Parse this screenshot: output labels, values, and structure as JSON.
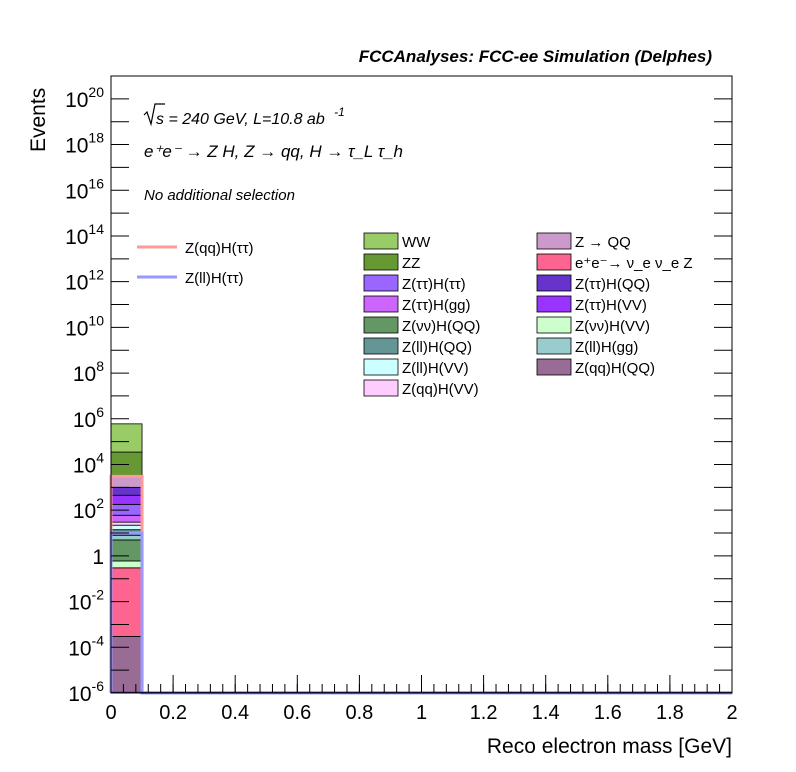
{
  "header": {
    "title": "FCCAnalyses: FCC-ee Simulation (Delphes)",
    "energy_label": "s = 240 GeV, L=10.8 ab",
    "lumi_exponent": "-1",
    "process_label": "e⁺e⁻ → Z H, Z → qq, H → τ_L τ_h",
    "selection_label": "No additional selection"
  },
  "chart_data": {
    "type": "bar",
    "stacked": true,
    "ylog": true,
    "xlabel": "Reco electron mass [GeV]",
    "ylabel": "Events",
    "xlim": [
      0,
      2
    ],
    "ylim": [
      1e-06,
      1e+21
    ],
    "x_ticks": [
      "0",
      "0.2",
      "0.4",
      "0.6",
      "0.8",
      "1",
      "1.2",
      "1.4",
      "1.6",
      "1.8",
      "2"
    ],
    "y_ticks": [
      {
        "value": 1e-06,
        "base": "10",
        "exp": "-6"
      },
      {
        "value": 0.0001,
        "base": "10",
        "exp": "-4"
      },
      {
        "value": 0.01,
        "base": "10",
        "exp": "-2"
      },
      {
        "value": 1,
        "base": "1",
        "exp": ""
      },
      {
        "value": 100.0,
        "base": "10",
        "exp": "2"
      },
      {
        "value": 10000.0,
        "base": "10",
        "exp": "4"
      },
      {
        "value": 1000000.0,
        "base": "10",
        "exp": "6"
      },
      {
        "value": 100000000.0,
        "base": "10",
        "exp": "8"
      },
      {
        "value": 10000000000.0,
        "base": "10",
        "exp": "10"
      },
      {
        "value": 1000000000000.0,
        "base": "10",
        "exp": "12"
      },
      {
        "value": 100000000000000.0,
        "base": "10",
        "exp": "14"
      },
      {
        "value": 1e+16,
        "base": "10",
        "exp": "16"
      },
      {
        "value": 1e+18,
        "base": "10",
        "exp": "18"
      },
      {
        "value": 1e+20,
        "base": "10",
        "exp": "20"
      }
    ],
    "bin": [
      0,
      0.1
    ],
    "stack_order_bottom_to_top": [
      {
        "name": "Z(qq)H(QQ)",
        "color": "#986c94",
        "cumulative_top": 0.0003
      },
      {
        "name": "e⁺e⁻→ ν_e ν_e Z",
        "color": "#fe6490",
        "cumulative_top": 0.3
      },
      {
        "name": "Z(νν)H(VV)",
        "color": "#ccffcc",
        "cumulative_top": 0.6
      },
      {
        "name": "Z(νν)H(QQ)",
        "color": "#639763",
        "cumulative_top": 5
      },
      {
        "name": "Z(ll)H(gg)",
        "color": "#99cccc",
        "cumulative_top": 8
      },
      {
        "name": "Z(ll)H(QQ)",
        "color": "#649696",
        "cumulative_top": 14
      },
      {
        "name": "Z(ll)H(VV)",
        "color": "#ccffff",
        "cumulative_top": 22
      },
      {
        "name": "Z(qq)H(VV)",
        "color": "#ffccff",
        "cumulative_top": 30
      },
      {
        "name": "Z(ττ)H(gg)",
        "color": "#cb65fe",
        "cumulative_top": 60
      },
      {
        "name": "Z(ττ)H(ττ)",
        "color": "#9966ff",
        "cumulative_top": 180
      },
      {
        "name": "Z(ττ)H(VV)",
        "color": "#9933ff",
        "cumulative_top": 450
      },
      {
        "name": "Z(ττ)H(QQ)",
        "color": "#6633cc",
        "cumulative_top": 1000
      },
      {
        "name": "Z → QQ",
        "color": "#cc99cc",
        "cumulative_top": 3000
      },
      {
        "name": "ZZ",
        "color": "#669933",
        "cumulative_top": 35000
      },
      {
        "name": "WW",
        "color": "#99cc66",
        "cumulative_top": 600000
      }
    ],
    "lines": [
      {
        "name": "Z(qq)H(ττ)",
        "color": "#ff9999",
        "value_first_bin": 3000,
        "min_value": 1e-06
      },
      {
        "name": "Z(ll)H(ττ)",
        "color": "#9999ff",
        "value_first_bin": 10,
        "min_value": 1e-06
      }
    ],
    "legend_lines": [
      "Z(qq)H(ττ)",
      "Z(ll)H(ττ)"
    ],
    "legend_col1": [
      "WW",
      "ZZ",
      "Z(ττ)H(ττ)",
      "Z(ττ)H(gg)",
      "Z(νν)H(QQ)",
      "Z(ll)H(QQ)",
      "Z(ll)H(VV)",
      "Z(qq)H(VV)"
    ],
    "legend_col2": [
      "Z → QQ",
      "e⁺e⁻→ ν_e ν_e Z",
      "Z(ττ)H(QQ)",
      "Z(ττ)H(VV)",
      "Z(νν)H(VV)",
      "Z(ll)H(gg)",
      "Z(qq)H(QQ)"
    ],
    "colors": {
      "WW": "#99cc66",
      "ZZ": "#669933",
      "Z(ττ)H(ττ)": "#9966ff",
      "Z(ττ)H(gg)": "#cb65fe",
      "Z(νν)H(QQ)": "#639763",
      "Z(ll)H(QQ)": "#649696",
      "Z(ll)H(VV)": "#ccffff",
      "Z(qq)H(VV)": "#ffccff",
      "Z → QQ": "#cc99cc",
      "e⁺e⁻→ ν_e ν_e Z": "#fe6490",
      "Z(ττ)H(QQ)": "#6633cc",
      "Z(ττ)H(VV)": "#9933ff",
      "Z(νν)H(VV)": "#ccffcc",
      "Z(ll)H(gg)": "#99cccc",
      "Z(qq)H(QQ)": "#986c94"
    }
  }
}
